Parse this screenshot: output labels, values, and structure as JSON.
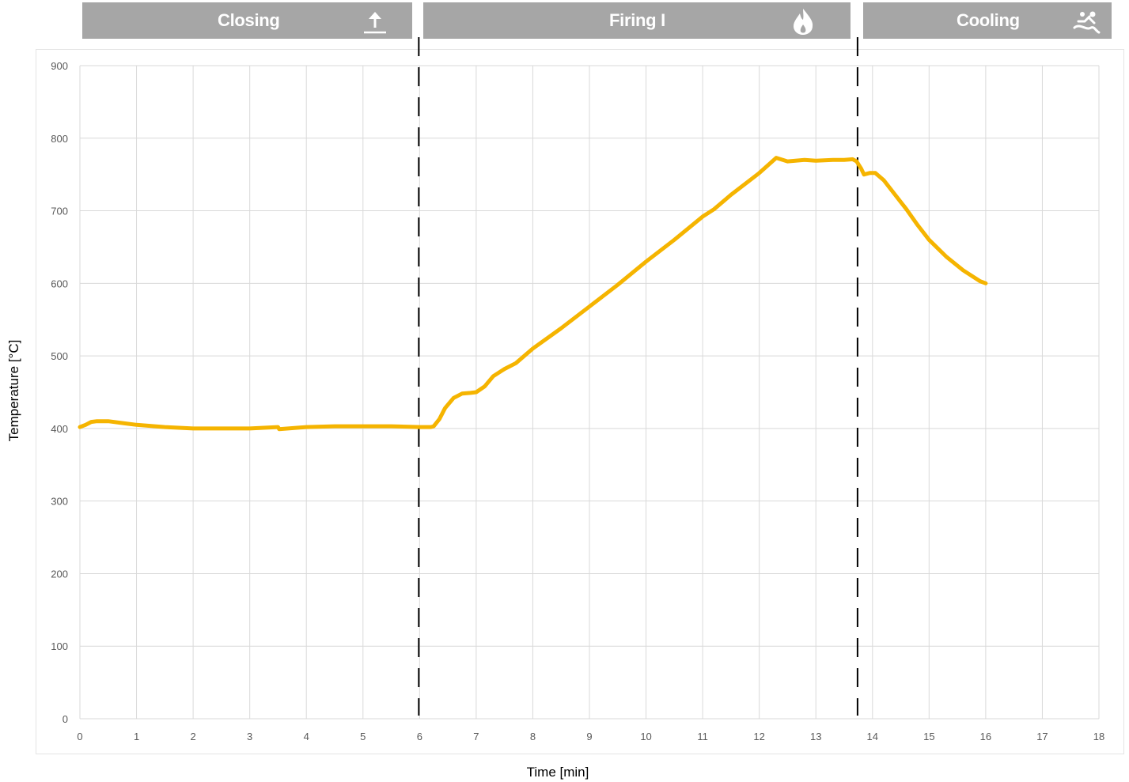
{
  "phases": [
    {
      "label": "Closing",
      "icon": "arrow-up-icon"
    },
    {
      "label": "Firing I",
      "icon": "flame-icon"
    },
    {
      "label": "Cooling",
      "icon": "cooling-icon"
    }
  ],
  "colors": {
    "phase_bar": "#a6a6a6",
    "series": "#f5b400",
    "grid": "#d9d9d9",
    "divider": "#000000"
  },
  "chart_data": {
    "type": "line",
    "title": "",
    "xlabel": "Time [min]",
    "ylabel": "Temperature [°C]",
    "xlim": [
      0,
      18
    ],
    "ylim": [
      0,
      900
    ],
    "x_ticks": [
      0,
      1,
      2,
      3,
      4,
      5,
      6,
      7,
      8,
      9,
      10,
      11,
      12,
      13,
      14,
      15,
      16,
      17,
      18
    ],
    "y_ticks": [
      0,
      100,
      200,
      300,
      400,
      500,
      600,
      700,
      800,
      900
    ],
    "grid": true,
    "phase_dividers": [
      6.0,
      13.75
    ],
    "series": [
      {
        "x": [
          0,
          0.1,
          0.2,
          0.3,
          0.5,
          0.8,
          1.0,
          1.5,
          2.0,
          2.5,
          3.0,
          3.5,
          3.52,
          4.0,
          4.5,
          5.0,
          5.5,
          6.0,
          6.2,
          6.25,
          6.35,
          6.45,
          6.6,
          6.75,
          6.9,
          7.0,
          7.15,
          7.3,
          7.5,
          7.7,
          8.0,
          8.5,
          9.0,
          9.5,
          10.0,
          10.5,
          11.0,
          11.2,
          11.5,
          12.0,
          12.2,
          12.3,
          12.5,
          12.8,
          13.0,
          13.3,
          13.5,
          13.65,
          13.72,
          13.8,
          13.85,
          13.95,
          14.05,
          14.2,
          14.4,
          14.6,
          14.8,
          15.0,
          15.3,
          15.6,
          15.9,
          16.0
        ],
        "y": [
          402,
          405,
          409,
          410,
          410,
          407,
          405,
          402,
          400,
          400,
          400,
          402,
          399,
          402,
          403,
          403,
          403,
          402,
          402,
          403,
          413,
          428,
          442,
          448,
          449,
          450,
          458,
          472,
          482,
          490,
          510,
          538,
          568,
          598,
          630,
          660,
          692,
          702,
          722,
          752,
          766,
          773,
          768,
          770,
          769,
          770,
          770,
          771,
          768,
          758,
          750,
          752,
          752,
          742,
          722,
          702,
          680,
          660,
          637,
          618,
          603,
          600
        ]
      }
    ]
  }
}
